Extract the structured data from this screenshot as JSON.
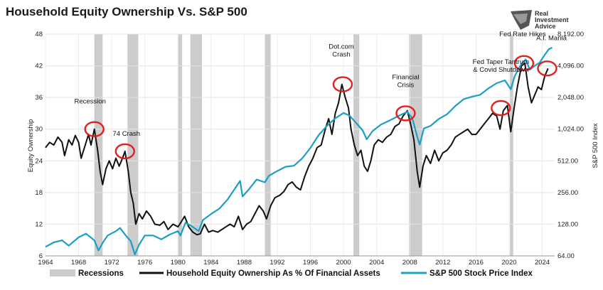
{
  "chart_data": {
    "type": "line",
    "title": "Household Equity Ownership Vs. S&P 500",
    "ylabel_left": "Equity Ownership",
    "ylabel_right": "S&P 500 Index",
    "xlim": [
      1964,
      2025.5
    ],
    "ylim_left": [
      6,
      48
    ],
    "ylim_right": [
      64,
      8192
    ],
    "right_axis_scale": "log2",
    "x_ticks": [
      "1964",
      "1968",
      "1972",
      "1976",
      "1980",
      "1984",
      "1988",
      "1992",
      "1996",
      "2000",
      "2004",
      "2008",
      "2012",
      "2016",
      "2020",
      "2024"
    ],
    "y_ticks_left": [
      "6",
      "12",
      "18",
      "24",
      "30",
      "36",
      "42",
      "48"
    ],
    "y_ticks_right": [
      "64.00",
      "128.00",
      "256.00",
      "512.00",
      "1,024.00",
      "2,048.00",
      "4,096.00",
      "8,192.00"
    ],
    "grid": true,
    "legend_position": "bottom",
    "recessions": [
      [
        1969.9,
        1970.9
      ],
      [
        1973.9,
        1975.2
      ],
      [
        1980.0,
        1980.5
      ],
      [
        1981.5,
        1982.9
      ],
      [
        1990.5,
        1991.2
      ],
      [
        2001.2,
        2001.9
      ],
      [
        2007.9,
        2009.5
      ],
      [
        2020.1,
        2020.5
      ]
    ],
    "series": [
      {
        "name": "Household Equity Ownership As % Of Financial Assets",
        "color": "#111111",
        "axis": "left",
        "points": [
          [
            1964,
            26.5
          ],
          [
            1964.5,
            27.5
          ],
          [
            1965,
            27
          ],
          [
            1965.5,
            28.5
          ],
          [
            1966,
            27.5
          ],
          [
            1966.3,
            25
          ],
          [
            1966.8,
            28
          ],
          [
            1967.2,
            27
          ],
          [
            1967.6,
            28.8
          ],
          [
            1968,
            27.5
          ],
          [
            1968.3,
            24.5
          ],
          [
            1968.8,
            27
          ],
          [
            1969.2,
            29
          ],
          [
            1969.5,
            27
          ],
          [
            1969.9,
            30
          ],
          [
            1970.3,
            26
          ],
          [
            1970.6,
            22
          ],
          [
            1970.9,
            19.5
          ],
          [
            1971.3,
            22.5
          ],
          [
            1971.7,
            24
          ],
          [
            1972.1,
            22.5
          ],
          [
            1972.5,
            24.5
          ],
          [
            1972.9,
            23
          ],
          [
            1973.3,
            24.5
          ],
          [
            1973.6,
            25.8
          ],
          [
            1974.0,
            22
          ],
          [
            1974.3,
            18
          ],
          [
            1974.6,
            16
          ],
          [
            1974.9,
            12
          ],
          [
            1975.3,
            14
          ],
          [
            1975.7,
            13
          ],
          [
            1976.2,
            14.5
          ],
          [
            1976.7,
            13.5
          ],
          [
            1977.2,
            12
          ],
          [
            1977.8,
            11.8
          ],
          [
            1978.3,
            12.5
          ],
          [
            1978.8,
            11
          ],
          [
            1979.4,
            12
          ],
          [
            1980.0,
            11.5
          ],
          [
            1980.3,
            12.2
          ],
          [
            1980.8,
            13.5
          ],
          [
            1981.3,
            11.5
          ],
          [
            1981.8,
            10.5
          ],
          [
            1982.3,
            10
          ],
          [
            1982.7,
            10.2
          ],
          [
            1983.2,
            12
          ],
          [
            1983.7,
            10.5
          ],
          [
            1984.2,
            10.8
          ],
          [
            1984.8,
            10.5
          ],
          [
            1985.3,
            11
          ],
          [
            1985.8,
            11.5
          ],
          [
            1986.3,
            12
          ],
          [
            1986.8,
            11.5
          ],
          [
            1987.3,
            13.5
          ],
          [
            1987.8,
            11
          ],
          [
            1988.3,
            12
          ],
          [
            1988.8,
            12.5
          ],
          [
            1989.3,
            14
          ],
          [
            1989.8,
            15.5
          ],
          [
            1990.3,
            14.5
          ],
          [
            1990.7,
            13
          ],
          [
            1991.2,
            15.5
          ],
          [
            1991.7,
            17
          ],
          [
            1992.3,
            17.5
          ],
          [
            1992.8,
            18.2
          ],
          [
            1993.3,
            19.5
          ],
          [
            1993.8,
            20
          ],
          [
            1994.3,
            19
          ],
          [
            1994.8,
            18.5
          ],
          [
            1995.3,
            21
          ],
          [
            1995.8,
            23
          ],
          [
            1996.3,
            24.5
          ],
          [
            1996.8,
            26.5
          ],
          [
            1997.3,
            27
          ],
          [
            1997.8,
            30
          ],
          [
            1998.2,
            32
          ],
          [
            1998.6,
            29
          ],
          [
            1999.0,
            33
          ],
          [
            1999.4,
            35
          ],
          [
            1999.8,
            38.5
          ],
          [
            2000.2,
            36
          ],
          [
            2000.6,
            34
          ],
          [
            2000.9,
            30
          ],
          [
            2001.3,
            27
          ],
          [
            2001.7,
            25
          ],
          [
            2002.1,
            26
          ],
          [
            2002.5,
            23
          ],
          [
            2002.9,
            22
          ],
          [
            2003.3,
            24
          ],
          [
            2003.7,
            27
          ],
          [
            2004.2,
            28
          ],
          [
            2004.7,
            27.5
          ],
          [
            2005.2,
            28.5
          ],
          [
            2005.7,
            29
          ],
          [
            2006.2,
            30.5
          ],
          [
            2006.7,
            31
          ],
          [
            2007.2,
            32.5
          ],
          [
            2007.7,
            33.5
          ],
          [
            2008.1,
            31
          ],
          [
            2008.5,
            28
          ],
          [
            2008.9,
            22
          ],
          [
            2009.2,
            19
          ],
          [
            2009.6,
            23
          ],
          [
            2010.0,
            25
          ],
          [
            2010.5,
            23.5
          ],
          [
            2011.0,
            26
          ],
          [
            2011.5,
            24
          ],
          [
            2012.0,
            25.5
          ],
          [
            2012.5,
            26
          ],
          [
            2013.0,
            27
          ],
          [
            2013.5,
            28.5
          ],
          [
            2014.0,
            29
          ],
          [
            2014.5,
            29.5
          ],
          [
            2015.0,
            30
          ],
          [
            2015.5,
            29
          ],
          [
            2016.0,
            29
          ],
          [
            2016.5,
            30
          ],
          [
            2017.0,
            31
          ],
          [
            2017.5,
            32
          ],
          [
            2018.0,
            33
          ],
          [
            2018.5,
            32.5
          ],
          [
            2018.9,
            30
          ],
          [
            2019.3,
            33.5
          ],
          [
            2019.8,
            34.5
          ],
          [
            2020.2,
            29.5
          ],
          [
            2020.6,
            34
          ],
          [
            2021.0,
            38
          ],
          [
            2021.5,
            42
          ],
          [
            2021.9,
            42.5
          ],
          [
            2022.3,
            38
          ],
          [
            2022.7,
            35
          ],
          [
            2023.1,
            36.5
          ],
          [
            2023.5,
            38
          ],
          [
            2023.9,
            37.5
          ],
          [
            2024.3,
            40
          ],
          [
            2024.7,
            41.5
          ]
        ]
      },
      {
        "name": "S&P 500 Stock Price Index",
        "color": "#1aa0c4",
        "axis": "right",
        "points": [
          [
            1964,
            78
          ],
          [
            1965,
            86
          ],
          [
            1966,
            90
          ],
          [
            1966.8,
            80
          ],
          [
            1968,
            96
          ],
          [
            1968.9,
            104
          ],
          [
            1969.9,
            90
          ],
          [
            1970.4,
            72
          ],
          [
            1970.9,
            85
          ],
          [
            1971.5,
            100
          ],
          [
            1972.5,
            110
          ],
          [
            1973.0,
            118
          ],
          [
            1973.7,
            100
          ],
          [
            1974.3,
            88
          ],
          [
            1974.8,
            66
          ],
          [
            1975.3,
            82
          ],
          [
            1976.0,
            100
          ],
          [
            1977.0,
            100
          ],
          [
            1978.0,
            92
          ],
          [
            1979.0,
            102
          ],
          [
            1980.0,
            110
          ],
          [
            1980.3,
            100
          ],
          [
            1980.9,
            132
          ],
          [
            1981.5,
            125
          ],
          [
            1982.5,
            110
          ],
          [
            1983.0,
            140
          ],
          [
            1984.0,
            160
          ],
          [
            1985.0,
            180
          ],
          [
            1986.0,
            220
          ],
          [
            1987.5,
            330
          ],
          [
            1987.8,
            235
          ],
          [
            1988.5,
            270
          ],
          [
            1989.5,
            340
          ],
          [
            1990.5,
            320
          ],
          [
            1991.0,
            370
          ],
          [
            1992.0,
            410
          ],
          [
            1993.0,
            450
          ],
          [
            1994.0,
            460
          ],
          [
            1995.0,
            540
          ],
          [
            1996.0,
            680
          ],
          [
            1997.0,
            900
          ],
          [
            1998.0,
            1100
          ],
          [
            1999.0,
            1300
          ],
          [
            2000.0,
            1460
          ],
          [
            2000.7,
            1380
          ],
          [
            2001.5,
            1180
          ],
          [
            2002.3,
            1000
          ],
          [
            2002.8,
            820
          ],
          [
            2003.5,
            980
          ],
          [
            2004.5,
            1130
          ],
          [
            2005.5,
            1230
          ],
          [
            2006.5,
            1350
          ],
          [
            2007.7,
            1500
          ],
          [
            2008.3,
            1300
          ],
          [
            2008.9,
            870
          ],
          [
            2009.2,
            730
          ],
          [
            2009.7,
            1040
          ],
          [
            2010.5,
            1100
          ],
          [
            2011.5,
            1280
          ],
          [
            2012.5,
            1420
          ],
          [
            2013.5,
            1700
          ],
          [
            2014.5,
            1970
          ],
          [
            2015.5,
            2080
          ],
          [
            2016.5,
            2170
          ],
          [
            2017.5,
            2500
          ],
          [
            2018.5,
            2800
          ],
          [
            2019.5,
            2980
          ],
          [
            2020.2,
            2450
          ],
          [
            2020.7,
            3300
          ],
          [
            2021.5,
            4300
          ],
          [
            2022.0,
            4700
          ],
          [
            2022.5,
            3750
          ],
          [
            2023.0,
            4050
          ],
          [
            2023.7,
            4400
          ],
          [
            2024.3,
            5200
          ],
          [
            2024.8,
            5900
          ],
          [
            2025.2,
            6100
          ]
        ]
      }
    ],
    "annotations": [
      {
        "text": "Recession",
        "x": 1969.9,
        "y": 30
      },
      {
        "text": "74 Crash",
        "x": 1973.6,
        "y": 25.8
      },
      {
        "text": "Dot.com Crash",
        "x": 1999.9,
        "y": 38.5
      },
      {
        "text": "Financial Crisis",
        "x": 2007.5,
        "y": 33
      },
      {
        "text": "Fed Taper Tantrum & Covid Shutdown",
        "x": 2019.0,
        "y": 34
      },
      {
        "text": "Fed Rate Hikes",
        "x": 2021.8,
        "y": 42.5
      },
      {
        "text": "A.I. Mania",
        "x": 2024.6,
        "y": 41.5
      }
    ],
    "legend": [
      "Recessions",
      "Household Equity Ownership As % Of Financial Assets",
      "S&P 500 Stock Price Index"
    ]
  },
  "logo": {
    "line1": "Real",
    "line2": "Investment",
    "line3": "Advice"
  },
  "colors": {
    "recession": "#cccccc",
    "circle": "#e02020",
    "equity": "#111111",
    "sp500": "#1aa0c4"
  }
}
